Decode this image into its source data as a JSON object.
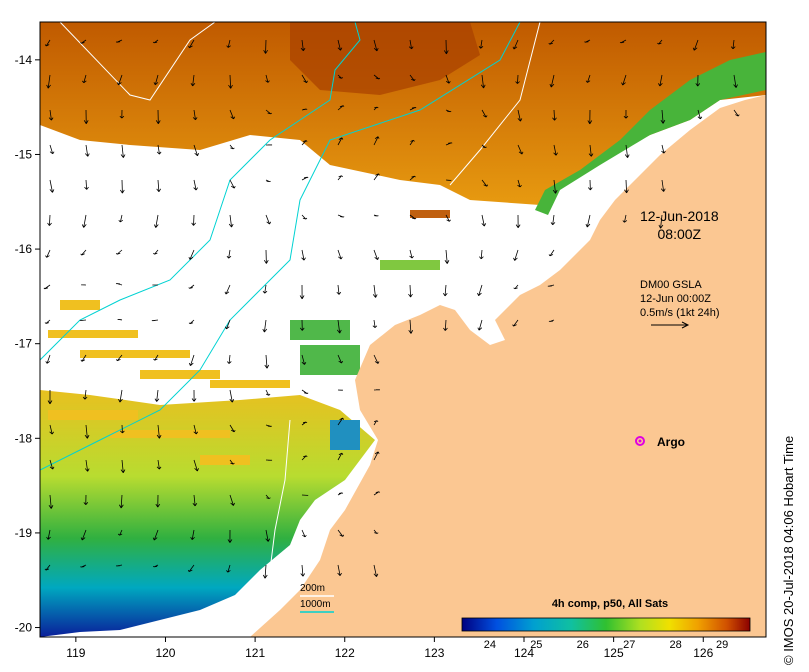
{
  "map": {
    "lon_ticks": [
      "119",
      "120",
      "121",
      "122",
      "123",
      "124",
      "125",
      "126"
    ],
    "lat_ticks": [
      "-14",
      "-15",
      "-16",
      "-17",
      "-18",
      "-19",
      "-20"
    ],
    "lon_range": [
      118.6,
      126.7
    ],
    "lat_range": [
      -20.1,
      -13.6
    ]
  },
  "annotations": {
    "date": "12-Jun-2018",
    "time": "08:00Z",
    "sla_title": "DM00 GSLA",
    "sla_time": "12-Jun 00:00Z",
    "sla_scale": "0.5m/s (1kt 24h)",
    "argo": "Argo"
  },
  "legend": {
    "depth_200": "200m",
    "depth_1000": "1000m",
    "color_200": "#ffffff",
    "color_1000": "#00d2d2"
  },
  "colorbar": {
    "title": "4h comp, p50, All Sats",
    "ticks": [
      "24",
      "25",
      "26",
      "27",
      "28",
      "29"
    ],
    "range": [
      23.4,
      29.6
    ]
  },
  "credit": "© IMOS 20-Jul-2018 04:06 Hobart Time",
  "colors": {
    "land": "#fbc792",
    "argo": "#e000e0",
    "sst_warm": "#c76f05",
    "sst_mid": "#f0c000",
    "sst_cool": "#40b040",
    "sst_cold": "#0a1e9a"
  }
}
